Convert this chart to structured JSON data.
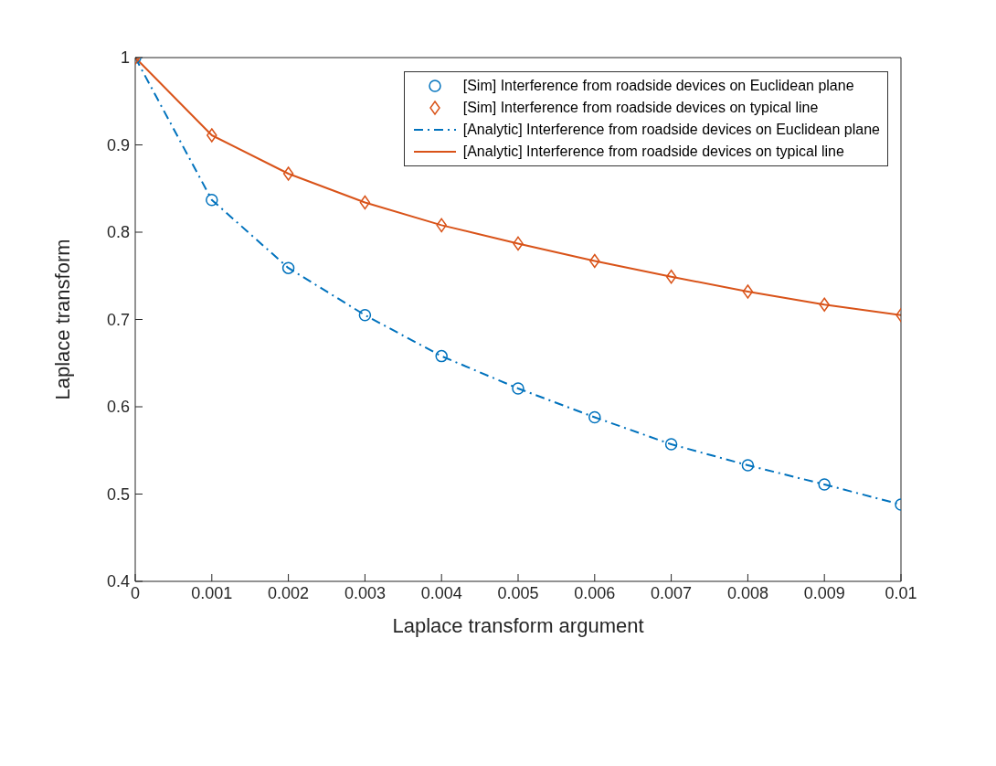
{
  "chart_data": {
    "type": "scatter",
    "xlabel": "Laplace transform argument",
    "ylabel": "Laplace transform",
    "xlim": [
      0,
      0.01
    ],
    "ylim": [
      0.4,
      1
    ],
    "xticks": [
      0,
      0.001,
      0.002,
      0.003,
      0.004,
      0.005,
      0.006,
      0.007,
      0.008,
      0.009,
      0.01
    ],
    "yticks": [
      0.4,
      0.5,
      0.6,
      0.7,
      0.8,
      0.9,
      1
    ],
    "x": [
      0,
      0.001,
      0.002,
      0.003,
      0.004,
      0.005,
      0.006,
      0.007,
      0.008,
      0.009,
      0.01
    ],
    "grid": false,
    "legend": "top right",
    "series": [
      {
        "name": "[Sim] Interference from roadside devices on Euclidean plane",
        "marker": "circle",
        "color": "#0072bd",
        "values": [
          1,
          0.837,
          0.759,
          0.705,
          0.658,
          0.621,
          0.588,
          0.557,
          0.533,
          0.511,
          0.488
        ]
      },
      {
        "name": "[Sim] Interference from roadside devices on typical line",
        "marker": "diamond",
        "color": "#d95319",
        "values": [
          1,
          0.911,
          0.867,
          0.834,
          0.808,
          0.787,
          0.767,
          0.749,
          0.732,
          0.717,
          0.705
        ]
      },
      {
        "name": "[Analytic] Interference from roadside devices on Euclidean plane",
        "type": "line",
        "marker": "none",
        "line_style": "dashed",
        "color": "#0072bd",
        "values": [
          1,
          0.837,
          0.759,
          0.705,
          0.658,
          0.621,
          0.588,
          0.557,
          0.533,
          0.511,
          0.488
        ]
      },
      {
        "name": "[Analytic] Interference from roadside devices on typical line",
        "type": "line",
        "marker": "none",
        "line_style": "solid",
        "color": "#d95319",
        "values": [
          1,
          0.911,
          0.867,
          0.834,
          0.808,
          0.787,
          0.767,
          0.749,
          0.732,
          0.717,
          0.705
        ]
      }
    ]
  }
}
